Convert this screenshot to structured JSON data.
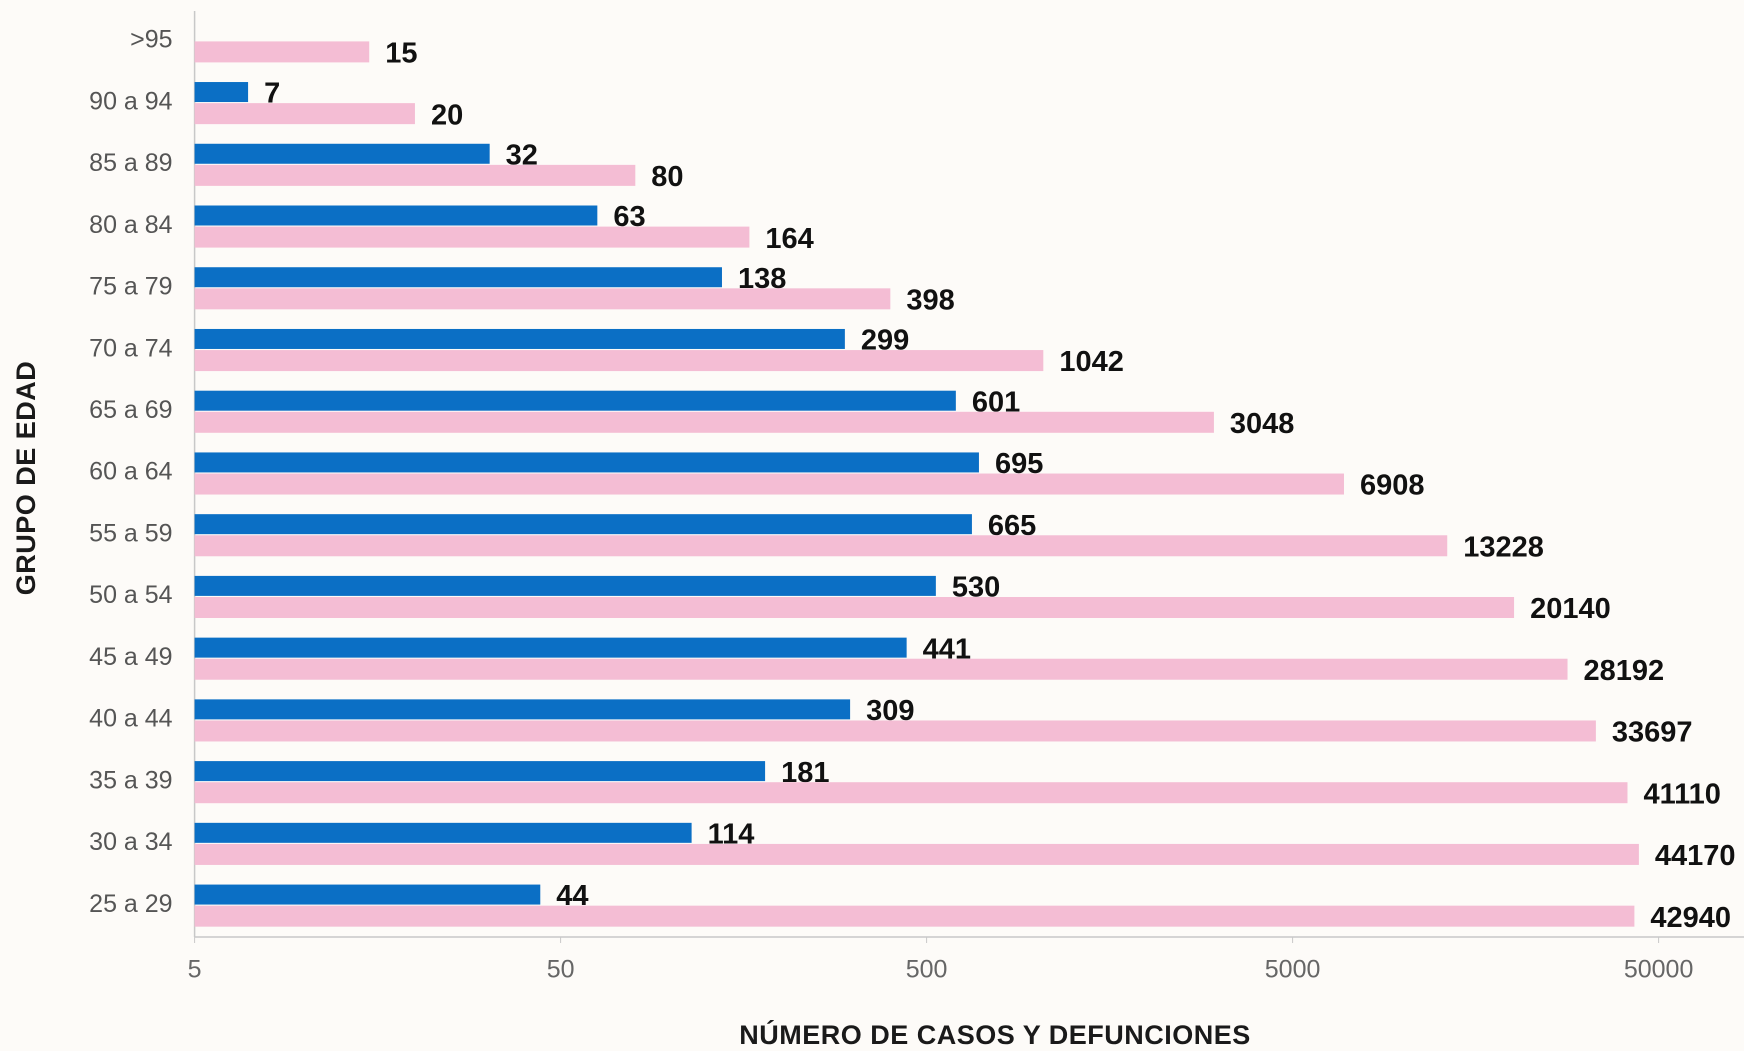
{
  "chart_data": {
    "type": "hbar",
    "log_x": true,
    "xlabel": "NÚMERO DE CASOS Y DEFUNCIONES",
    "ylabel": "GRUPO DE EDAD",
    "categories": [
      ">95",
      "90 a 94",
      "85 a 89",
      "80 a 84",
      "75 a 79",
      "70 a 74",
      "65 a 69",
      "60 a 64",
      "55 a 59",
      "50 a 54",
      "45 a 49",
      "40 a 44",
      "35 a 39",
      "30 a 34",
      "25 a 29"
    ],
    "series": [
      {
        "color": "#0b6fc5",
        "values": [
          null,
          7,
          32,
          63,
          138,
          299,
          601,
          695,
          665,
          530,
          441,
          309,
          181,
          114,
          44
        ]
      },
      {
        "color": "#f4bdd4",
        "values": [
          15,
          20,
          80,
          164,
          398,
          1042,
          3048,
          6908,
          13228,
          20140,
          28192,
          33697,
          41110,
          44170,
          42940
        ]
      }
    ],
    "xlim": [
      5,
      80000
    ],
    "xticks": [
      5,
      50,
      500,
      5000,
      50000
    ]
  }
}
